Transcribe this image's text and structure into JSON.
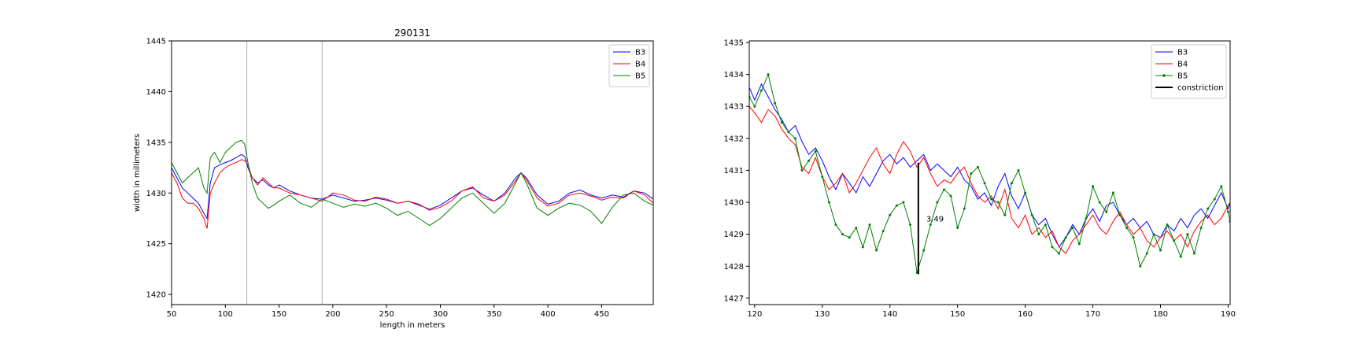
{
  "chart_data": [
    {
      "type": "line",
      "title": "290131",
      "xlabel": "length in meters",
      "ylabel": "width in millimeters",
      "xlim": [
        50,
        498
      ],
      "ylim": [
        1419,
        1445
      ],
      "xticks": [
        50,
        100,
        150,
        200,
        250,
        300,
        350,
        400,
        450
      ],
      "yticks": [
        1420,
        1425,
        1430,
        1435,
        1440,
        1445
      ],
      "grid": false,
      "legend_position": "top-right",
      "vertical_lines": [
        120,
        190
      ],
      "series": [
        {
          "name": "B3",
          "color": "#0000ff",
          "x": [
            50,
            55,
            60,
            65,
            70,
            75,
            80,
            83,
            86,
            90,
            95,
            100,
            105,
            110,
            115,
            118,
            121,
            125,
            130,
            135,
            140,
            145,
            150,
            160,
            170,
            180,
            190,
            200,
            210,
            220,
            230,
            240,
            250,
            260,
            270,
            280,
            290,
            300,
            310,
            320,
            330,
            340,
            350,
            360,
            370,
            375,
            380,
            390,
            400,
            410,
            420,
            430,
            440,
            450,
            460,
            470,
            480,
            490,
            498
          ],
          "values": [
            1432.5,
            1431.5,
            1430.5,
            1430.0,
            1429.5,
            1429.0,
            1428.0,
            1427.5,
            1431.0,
            1432.5,
            1432.8,
            1433.0,
            1433.2,
            1433.5,
            1433.8,
            1433.6,
            1432.5,
            1431.5,
            1431.0,
            1431.3,
            1430.8,
            1430.5,
            1430.8,
            1430.2,
            1429.8,
            1429.5,
            1429.4,
            1429.8,
            1429.5,
            1429.2,
            1429.3,
            1429.5,
            1429.3,
            1429.0,
            1429.2,
            1428.8,
            1428.4,
            1428.8,
            1429.5,
            1430.2,
            1430.5,
            1429.8,
            1429.2,
            1430.0,
            1431.5,
            1432.0,
            1431.5,
            1429.8,
            1428.9,
            1429.2,
            1430.0,
            1430.3,
            1429.8,
            1429.5,
            1429.8,
            1429.6,
            1430.2,
            1430.0,
            1429.4
          ]
        },
        {
          "name": "B4",
          "color": "#ff0000",
          "x": [
            50,
            55,
            60,
            65,
            70,
            75,
            80,
            83,
            86,
            90,
            95,
            100,
            105,
            110,
            115,
            118,
            121,
            125,
            130,
            135,
            140,
            145,
            150,
            160,
            170,
            180,
            190,
            200,
            210,
            220,
            230,
            240,
            250,
            260,
            270,
            280,
            290,
            300,
            310,
            320,
            330,
            340,
            350,
            360,
            370,
            375,
            380,
            390,
            400,
            410,
            420,
            430,
            440,
            450,
            460,
            470,
            480,
            490,
            498
          ],
          "values": [
            1432.0,
            1431.0,
            1429.5,
            1429.0,
            1429.0,
            1428.5,
            1427.5,
            1426.5,
            1430.0,
            1431.0,
            1432.0,
            1432.5,
            1432.8,
            1433.0,
            1433.3,
            1433.2,
            1432.8,
            1431.5,
            1430.8,
            1431.5,
            1431.0,
            1430.5,
            1430.5,
            1430.0,
            1429.8,
            1429.5,
            1429.2,
            1430.0,
            1429.8,
            1429.3,
            1429.2,
            1429.6,
            1429.4,
            1429.0,
            1429.2,
            1428.9,
            1428.3,
            1428.6,
            1429.2,
            1430.2,
            1430.6,
            1429.5,
            1429.2,
            1429.8,
            1431.2,
            1432.0,
            1431.3,
            1429.5,
            1428.7,
            1429.0,
            1429.8,
            1430.0,
            1429.7,
            1429.3,
            1429.6,
            1429.5,
            1430.2,
            1429.8,
            1429.0
          ]
        },
        {
          "name": "B5",
          "color": "#008000",
          "x": [
            50,
            55,
            60,
            65,
            70,
            75,
            80,
            83,
            86,
            90,
            95,
            100,
            105,
            110,
            115,
            118,
            121,
            125,
            130,
            135,
            140,
            145,
            150,
            160,
            170,
            180,
            190,
            200,
            210,
            220,
            230,
            240,
            250,
            260,
            270,
            280,
            290,
            300,
            310,
            320,
            330,
            340,
            350,
            360,
            370,
            375,
            380,
            390,
            400,
            410,
            420,
            430,
            440,
            450,
            460,
            470,
            480,
            490,
            498
          ],
          "values": [
            1433.0,
            1432.0,
            1431.0,
            1431.5,
            1432.0,
            1432.5,
            1430.5,
            1430.0,
            1433.5,
            1434.0,
            1433.0,
            1434.0,
            1434.5,
            1435.0,
            1435.2,
            1434.8,
            1433.0,
            1431.0,
            1429.5,
            1429.0,
            1428.5,
            1428.8,
            1429.2,
            1429.8,
            1429.0,
            1428.6,
            1429.4,
            1429.0,
            1428.6,
            1428.9,
            1428.7,
            1429.0,
            1428.5,
            1427.8,
            1428.2,
            1427.5,
            1426.8,
            1427.5,
            1428.5,
            1429.5,
            1430.0,
            1429.0,
            1428.0,
            1429.0,
            1431.0,
            1432.0,
            1431.0,
            1428.5,
            1427.8,
            1428.5,
            1429.0,
            1428.8,
            1428.2,
            1427.0,
            1428.6,
            1429.8,
            1430.0,
            1429.2,
            1428.8
          ]
        }
      ]
    },
    {
      "type": "line",
      "title": "",
      "xlabel": "",
      "ylabel": "",
      "xlim": [
        119.2,
        190.3
      ],
      "ylim": [
        1426.8,
        1435.05
      ],
      "xticks": [
        120,
        130,
        140,
        150,
        160,
        170,
        180,
        190
      ],
      "yticks": [
        1427,
        1428,
        1429,
        1430,
        1431,
        1432,
        1433,
        1434,
        1435
      ],
      "grid": false,
      "legend_position": "top-right",
      "annotation": {
        "x": 144.2,
        "y_from": 1427.75,
        "y_to": 1431.24,
        "text": "3.49"
      },
      "series": [
        {
          "name": "B3",
          "color": "#0000ff",
          "x": [
            119.2,
            120,
            121,
            122,
            123,
            124,
            125,
            126,
            127,
            128,
            129,
            130,
            131,
            132,
            133,
            134,
            135,
            136,
            137,
            138,
            139,
            140,
            141,
            142,
            143,
            144,
            145,
            146,
            147,
            148,
            149,
            150,
            151,
            152,
            153,
            154,
            155,
            156,
            157,
            158,
            159,
            160,
            161,
            162,
            163,
            164,
            165,
            166,
            167,
            168,
            169,
            170,
            171,
            172,
            173,
            174,
            175,
            176,
            177,
            178,
            179,
            180,
            181,
            182,
            183,
            184,
            185,
            186,
            187,
            188,
            189,
            190,
            190.3
          ],
          "values": [
            1433.6,
            1433.2,
            1433.7,
            1433.3,
            1432.9,
            1432.6,
            1432.2,
            1432.4,
            1431.9,
            1431.5,
            1431.7,
            1431.3,
            1430.8,
            1430.4,
            1430.9,
            1430.6,
            1430.3,
            1430.8,
            1430.5,
            1430.9,
            1431.3,
            1431.5,
            1431.2,
            1431.4,
            1431.1,
            1431.3,
            1431.5,
            1431.0,
            1431.2,
            1431.0,
            1430.8,
            1431.1,
            1430.7,
            1430.5,
            1430.1,
            1430.3,
            1429.9,
            1430.5,
            1430.9,
            1430.2,
            1429.8,
            1430.3,
            1429.6,
            1429.3,
            1429.5,
            1429.0,
            1428.6,
            1428.9,
            1429.3,
            1429.0,
            1429.5,
            1429.8,
            1429.4,
            1429.9,
            1430.0,
            1429.6,
            1429.3,
            1429.5,
            1429.2,
            1429.4,
            1429.0,
            1428.9,
            1429.3,
            1429.1,
            1429.5,
            1429.2,
            1429.6,
            1429.8,
            1429.5,
            1429.9,
            1430.3,
            1429.8,
            1430.0
          ]
        },
        {
          "name": "B4",
          "color": "#ff0000",
          "x": [
            119.2,
            120,
            121,
            122,
            123,
            124,
            125,
            126,
            127,
            128,
            129,
            130,
            131,
            132,
            133,
            134,
            135,
            136,
            137,
            138,
            139,
            140,
            141,
            142,
            143,
            144,
            145,
            146,
            147,
            148,
            149,
            150,
            151,
            152,
            153,
            154,
            155,
            156,
            157,
            158,
            159,
            160,
            161,
            162,
            163,
            164,
            165,
            166,
            167,
            168,
            169,
            170,
            171,
            172,
            173,
            174,
            175,
            176,
            177,
            178,
            179,
            180,
            181,
            182,
            183,
            184,
            185,
            186,
            187,
            188,
            189,
            190,
            190.3
          ],
          "values": [
            1433.0,
            1432.8,
            1432.5,
            1432.9,
            1432.7,
            1432.3,
            1432.0,
            1431.8,
            1431.1,
            1430.9,
            1431.4,
            1430.8,
            1430.4,
            1430.6,
            1430.9,
            1430.3,
            1430.6,
            1431.0,
            1431.4,
            1431.7,
            1431.2,
            1430.9,
            1431.5,
            1431.9,
            1431.6,
            1431.1,
            1431.4,
            1430.9,
            1430.5,
            1430.7,
            1430.6,
            1430.9,
            1431.1,
            1430.6,
            1430.2,
            1430.0,
            1430.2,
            1429.8,
            1430.4,
            1429.5,
            1429.2,
            1429.6,
            1429.0,
            1429.2,
            1428.9,
            1429.1,
            1428.6,
            1428.4,
            1428.8,
            1429.0,
            1429.3,
            1429.6,
            1429.2,
            1429.0,
            1429.4,
            1429.7,
            1429.3,
            1429.0,
            1429.2,
            1428.8,
            1428.6,
            1428.9,
            1429.1,
            1428.8,
            1429.0,
            1428.6,
            1429.1,
            1429.4,
            1429.6,
            1429.3,
            1429.5,
            1429.9,
            1430.0
          ]
        },
        {
          "name": "B5",
          "color": "#008000",
          "x": [
            119.2,
            120,
            121,
            122,
            123,
            124,
            125,
            126,
            127,
            128,
            129,
            130,
            131,
            132,
            133,
            134,
            135,
            136,
            137,
            138,
            139,
            140,
            141,
            142,
            143,
            144,
            145,
            146,
            147,
            148,
            149,
            150,
            151,
            152,
            153,
            154,
            155,
            156,
            157,
            158,
            159,
            160,
            161,
            162,
            163,
            164,
            165,
            166,
            167,
            168,
            169,
            170,
            171,
            172,
            173,
            174,
            175,
            176,
            177,
            178,
            179,
            180,
            181,
            182,
            183,
            184,
            185,
            186,
            187,
            188,
            189,
            190,
            190.3
          ],
          "values": [
            1433.3,
            1433.0,
            1433.5,
            1434.0,
            1433.1,
            1432.5,
            1432.2,
            1432.0,
            1431.0,
            1431.3,
            1431.6,
            1430.8,
            1430.0,
            1429.3,
            1429.0,
            1428.9,
            1429.2,
            1428.6,
            1429.3,
            1428.5,
            1429.1,
            1429.6,
            1429.9,
            1430.0,
            1429.3,
            1427.8,
            1428.5,
            1429.3,
            1430.0,
            1430.4,
            1430.2,
            1429.2,
            1429.8,
            1430.9,
            1431.1,
            1430.6,
            1430.1,
            1430.0,
            1429.6,
            1430.6,
            1431.0,
            1430.3,
            1429.6,
            1429.0,
            1429.3,
            1428.6,
            1428.4,
            1428.9,
            1429.2,
            1428.7,
            1429.5,
            1430.5,
            1430.0,
            1429.7,
            1430.3,
            1429.6,
            1429.2,
            1428.9,
            1428.0,
            1428.4,
            1429.0,
            1428.5,
            1429.3,
            1428.8,
            1428.3,
            1429.0,
            1428.4,
            1429.2,
            1429.8,
            1430.1,
            1430.5,
            1429.7,
            1429.4
          ]
        },
        {
          "name": "constriction",
          "color": "#000000",
          "x": [],
          "values": []
        }
      ]
    }
  ]
}
